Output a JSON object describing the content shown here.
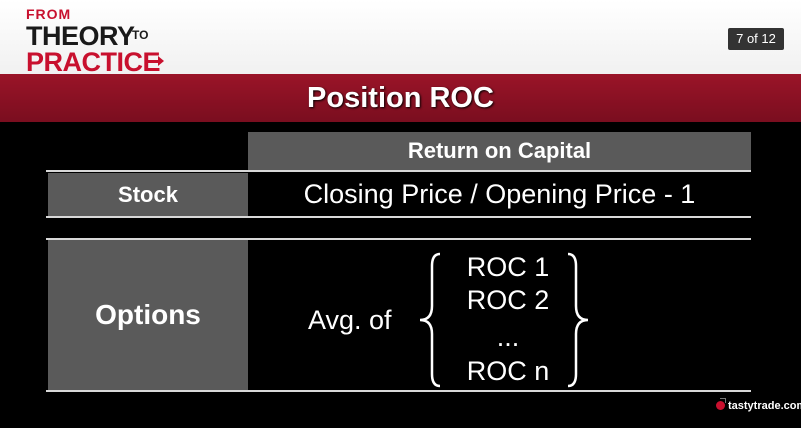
{
  "header": {
    "logo": {
      "from": "FROM",
      "theory": "THEORY",
      "to": "TO",
      "practice": "PRACTICE"
    },
    "page_counter": "7 of 12"
  },
  "slide": {
    "title": "Position ROC",
    "table": {
      "column_header": "Return on Capital",
      "stock": {
        "label": "Stock",
        "formula": "Closing Price  / Opening Price - 1"
      },
      "options": {
        "label": "Options",
        "prefix": "Avg. of",
        "items": [
          "ROC 1",
          "ROC 2",
          "...",
          "ROC n"
        ]
      }
    }
  },
  "footer": {
    "brand": "tastytrade.com"
  },
  "colors": {
    "brand_red": "#c8102e",
    "title_band": "#8b1224",
    "cell_gray": "#5a5a5a",
    "background": "#000000"
  }
}
